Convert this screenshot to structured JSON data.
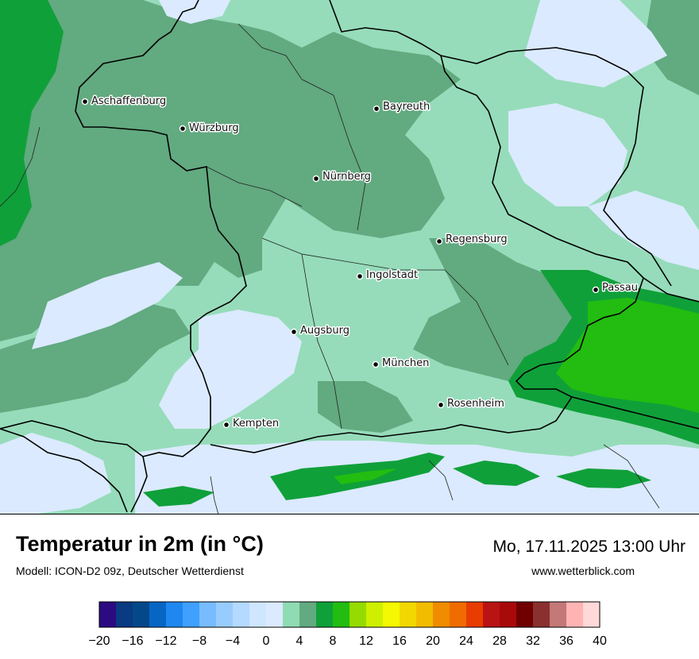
{
  "header": {
    "title": "Temperatur in 2m (in °C)",
    "subtitle": "Modell: ICON-D2 09z, Deutscher Wetterdienst",
    "datetime": "Mo, 17.11.2025 13:00 Uhr",
    "website": "www.wetterblick.com"
  },
  "cities": [
    {
      "name": "Aschaffenburg"
    },
    {
      "name": "Würzburg"
    },
    {
      "name": "Bayreuth"
    },
    {
      "name": "Nürnberg"
    },
    {
      "name": "Regensburg"
    },
    {
      "name": "Ingolstadt"
    },
    {
      "name": "Passau"
    },
    {
      "name": "Augsburg"
    },
    {
      "name": "München"
    },
    {
      "name": "Rosenheim"
    },
    {
      "name": "Kempten"
    }
  ],
  "legend": {
    "ticks": [
      "−20",
      "−16",
      "−12",
      "−8",
      "−4",
      "0",
      "4",
      "8",
      "12",
      "16",
      "20",
      "24",
      "28",
      "32",
      "36",
      "40"
    ],
    "colors": [
      "#2c0a82",
      "#0a3a82",
      "#04488a",
      "#0766c4",
      "#1e88f0",
      "#40a0ff",
      "#78bcff",
      "#98ccff",
      "#b4daff",
      "#cfe6ff",
      "#dbeaff",
      "#8fdcb4",
      "#62aa80",
      "#10a03a",
      "#22bd10",
      "#96db00",
      "#cef000",
      "#f4f800",
      "#f2d800",
      "#f2bc00",
      "#f08c00",
      "#f06c00",
      "#e83c00",
      "#b81414",
      "#a80a0a",
      "#700000",
      "#8a3030",
      "#c47878",
      "#ffb4b4",
      "#ffd8d8"
    ]
  },
  "colors": {
    "light_green": "#96dcba",
    "mid_green": "#62aa80",
    "bright_green": "#10a03a",
    "lime_green": "#22bd10",
    "pale_blue": "#dbeaff"
  }
}
